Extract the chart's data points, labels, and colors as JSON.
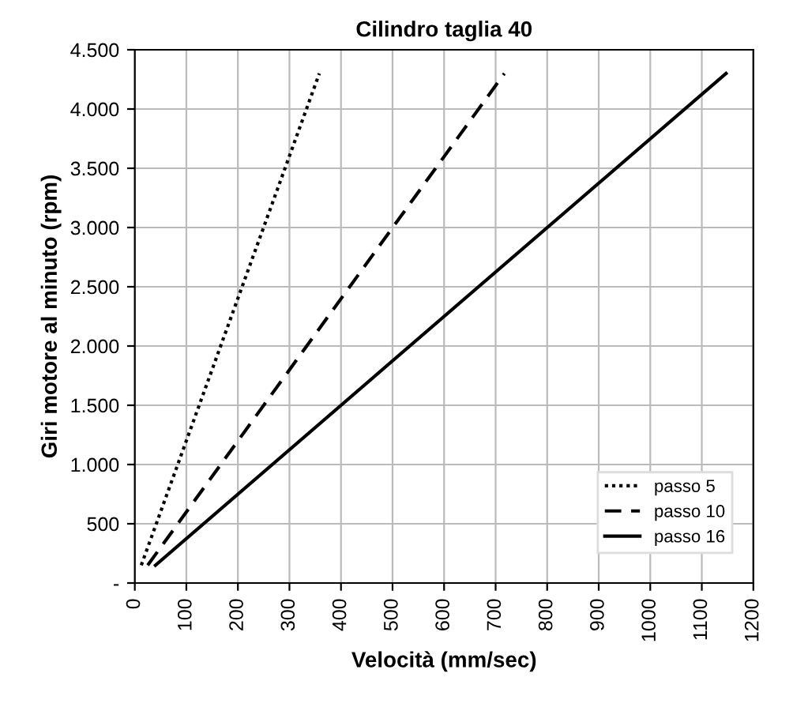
{
  "chart_data": {
    "type": "line",
    "title": "Cilindro taglia 40",
    "xlabel": "Velocità (mm/sec)",
    "ylabel": "Giri motore al minuto (rpm)",
    "series": [
      {
        "name": "passo 5",
        "color": "#000000",
        "line_style": "dotted",
        "x": [
          12.5,
          358
        ],
        "values": [
          150,
          4300
        ]
      },
      {
        "name": "passo 10",
        "color": "#000000",
        "line_style": "dashed",
        "x": [
          25,
          717
        ],
        "values": [
          150,
          4300
        ]
      },
      {
        "name": "passo 16",
        "color": "#000000",
        "line_style": "solid",
        "x": [
          40,
          1147
        ],
        "values": [
          150,
          4300
        ]
      }
    ],
    "xlim": [
      0,
      1200
    ],
    "xticks": [
      0,
      100,
      200,
      300,
      400,
      500,
      600,
      700,
      800,
      900,
      1000,
      1100,
      1200
    ],
    "ylim": [
      0,
      4500
    ],
    "yticks": [
      {
        "value": 0,
        "label": "-"
      },
      {
        "value": 500,
        "label": "500"
      },
      {
        "value": 1000,
        "label": "1.000"
      },
      {
        "value": 1500,
        "label": "1.500"
      },
      {
        "value": 2000,
        "label": "2.000"
      },
      {
        "value": 2500,
        "label": "2.500"
      },
      {
        "value": 3000,
        "label": "3.000"
      },
      {
        "value": 3500,
        "label": "3.500"
      },
      {
        "value": 4000,
        "label": "4.000"
      },
      {
        "value": 4500,
        "label": "4.500"
      }
    ],
    "grid": true,
    "legend": "bottom right",
    "marker": "none"
  }
}
